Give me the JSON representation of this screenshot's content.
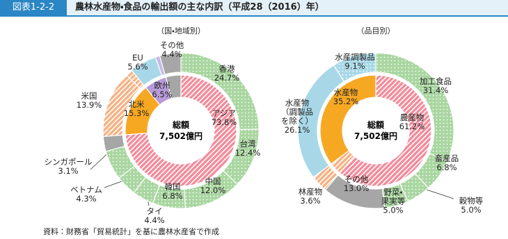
{
  "header": {
    "figure_no": "図表1-2-2",
    "title": "農林水産物・食品の輸出額の主な内訳（平成28（2016）年）"
  },
  "chart_data": [
    {
      "type": "donut",
      "subtitle": "（国・地域別）",
      "center": {
        "title": "総額",
        "value": 7502,
        "value_label": "7,502億円"
      },
      "rings": [
        {
          "categories": [
            "アジア",
            "北米",
            "欧州",
            null
          ],
          "values": [
            73.8,
            15.3,
            6.5,
            4.4
          ],
          "value_labels": [
            "73.8%",
            "15.3%",
            "6.5%",
            null
          ],
          "colors": [
            "#f28b9b",
            "#f7a823",
            "#b79bd8",
            "#a6a6a6"
          ],
          "patterns": [
            "stripes",
            null,
            null,
            null
          ]
        },
        {
          "categories": [
            "香港",
            "台湾",
            "中国",
            "韓国",
            "タイ",
            "ベトナム",
            null,
            "シンガポール",
            "米国",
            null,
            "EU",
            null,
            "その他"
          ],
          "values": [
            24.7,
            12.4,
            12.0,
            6.8,
            4.4,
            4.3,
            6.1,
            3.1,
            13.9,
            1.4,
            5.6,
            0.9,
            4.4
          ],
          "value_labels": [
            "24.7%",
            "12.4%",
            "12.0%",
            "6.8%",
            "4.4%",
            "4.3%",
            null,
            "3.1%",
            "13.9%",
            null,
            "5.6%",
            null,
            "4.4%"
          ],
          "colors": [
            "#a9d6a0",
            "#a9d6a0",
            "#a9d6a0",
            "#a9d6a0",
            "#a9d6a0",
            "#a9d6a0",
            "#a9d6a0",
            "#a6a6a6",
            "#f5b183",
            "#f5b183",
            "#a8d8e8",
            "#c9b8e6",
            "#a6a6a6"
          ],
          "patterns": [
            "dots",
            "dots",
            "dots",
            "dots",
            "dots",
            "dots",
            "dots",
            null,
            "stripes",
            "stripes",
            null,
            null,
            null
          ]
        }
      ]
    },
    {
      "type": "donut",
      "subtitle": "（品目別）",
      "center": {
        "title": "総額",
        "value": 7502,
        "value_label": "7,502億円"
      },
      "rings": [
        {
          "categories": [
            "農産物",
            "林産物",
            "水産物"
          ],
          "values": [
            61.2,
            3.6,
            35.2
          ],
          "value_labels": [
            "61.2%",
            "3.6%",
            "35.2%"
          ],
          "colors": [
            "#f28b9b",
            "#f5b183",
            "#f7a823"
          ],
          "patterns": [
            "stripes",
            "stripes",
            null
          ]
        },
        {
          "categories": [
            "加工食品",
            "畜産品",
            "穀物等",
            "野菜・\n果実等",
            "その他",
            null,
            "水産物\n（調製品\nを除く）",
            "水産調製品"
          ],
          "values": [
            31.4,
            6.8,
            5.0,
            5.0,
            13.0,
            3.6,
            26.1,
            9.1
          ],
          "value_labels": [
            "31.4%",
            "6.8%",
            "5.0%",
            "5.0%",
            "13.0%",
            null,
            "26.1%",
            "9.1%"
          ],
          "colors": [
            "#a9d6a0",
            "#a9d6a0",
            "#a9d6a0",
            "#a9d6a0",
            "#a6a6a6",
            "#f5b183",
            "#a8d8e8",
            "#a8d8e8"
          ],
          "patterns": [
            "dots",
            "dots",
            "dots",
            "dots",
            null,
            "stripes",
            null,
            "dots"
          ]
        }
      ]
    }
  ],
  "source": "資料：財務省「貿易統計」を基に農林水産省で作成"
}
